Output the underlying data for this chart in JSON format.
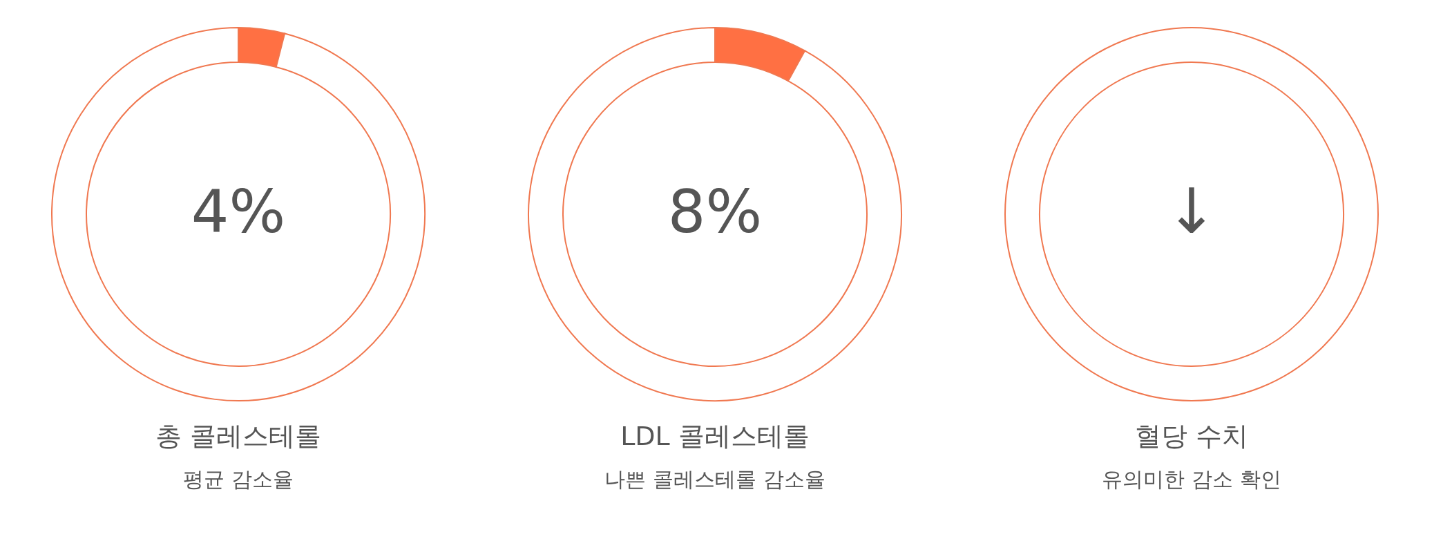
{
  "chart_data": [
    {
      "type": "donut",
      "title": "총 콜레스테롤",
      "subtitle": "평균 감소율",
      "categories": [
        null,
        null
      ],
      "values": [
        4,
        96
      ],
      "colors": [
        "#ff7043",
        "#ffffff"
      ],
      "annotations": [
        "4%"
      ]
    },
    {
      "type": "donut",
      "title": "LDL 콜레스테롤",
      "subtitle": "나쁜 콜레스테롤 감소율",
      "categories": [
        null,
        null
      ],
      "values": [
        8,
        92
      ],
      "colors": [
        "#ff7043",
        "#ffffff"
      ],
      "annotations": [
        "8%"
      ]
    },
    {
      "type": "other",
      "title": "혈당 수치",
      "subtitle": "유의미한 감소 확인",
      "annotations": [
        "↓"
      ]
    }
  ]
}
